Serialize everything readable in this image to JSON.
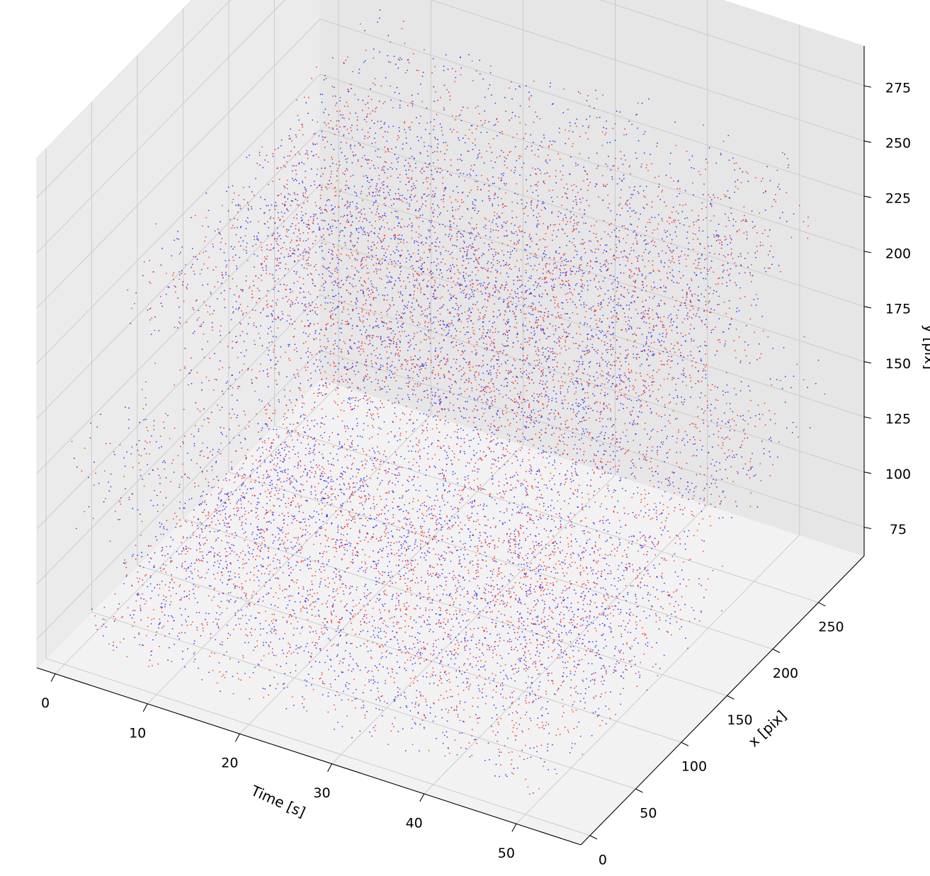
{
  "chart_data": {
    "type": "scatter",
    "projection": "3d",
    "title": "",
    "xlabel": "Time [s]",
    "ylabel": "x [pix]",
    "zlabel": "y [pix]",
    "time_ticks": [
      "0",
      "10",
      "20",
      "30",
      "40",
      "50"
    ],
    "x_ticks": [
      "0",
      "50",
      "100",
      "150",
      "200",
      "250"
    ],
    "y_ticks": [
      "75",
      "100",
      "125",
      "150",
      "175",
      "200",
      "225",
      "250",
      "275"
    ],
    "time_range": [
      -2,
      57
    ],
    "x_range": [
      -10,
      300
    ],
    "y_range": [
      62,
      293
    ],
    "grid": true,
    "legend": "none",
    "series": [
      {
        "color": "#ff0000",
        "marker_size": 1
      },
      {
        "color": "#0000ff",
        "marker_size": 1
      }
    ],
    "bands": [
      {
        "t0": 5,
        "t1": 54,
        "x0": 5,
        "x1": 285,
        "y0": 212,
        "y1": 248
      },
      {
        "t0": 2,
        "t1": 50,
        "x0": 140,
        "x1": 280,
        "y0": 160,
        "y1": 215
      },
      {
        "t0": 0,
        "t1": 55,
        "x0": 0,
        "x1": 280,
        "y0": 120,
        "y1": 165
      },
      {
        "t0": 5,
        "t1": 50,
        "x0": 5,
        "x1": 280,
        "y0": 90,
        "y1": 125
      },
      {
        "t0": 2,
        "t1": 52,
        "x0": 0,
        "x1": 200,
        "y0": 70,
        "y1": 95
      }
    ]
  }
}
